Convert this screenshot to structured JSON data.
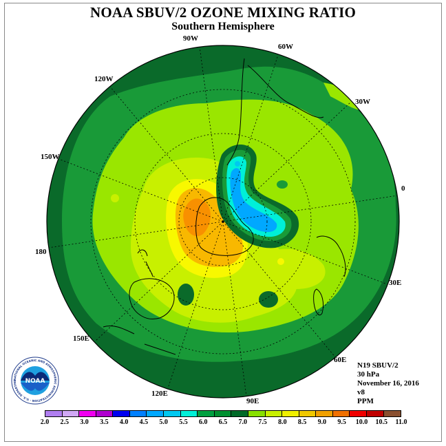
{
  "title": "NOAA SBUV/2 OZONE MIXING RATIO",
  "subtitle": "Southern Hemisphere",
  "longitude_labels": {
    "w90": "90W",
    "w60": "60W",
    "w30": "30W",
    "w120": "120W",
    "w150": "150W",
    "zero": "0",
    "lon180": "180",
    "e30": "30E",
    "e60": "60E",
    "e90": "90E",
    "e120": "120E",
    "e150": "150E"
  },
  "info": {
    "satellite": "N19 SBUV/2",
    "level": "30 hPa",
    "date": "November 16, 2016",
    "version": "v8",
    "units": "PPM"
  },
  "legend": {
    "colors": [
      "#b07ef0",
      "#d0a8f5",
      "#f000f0",
      "#b000d0",
      "#0000f0",
      "#0080ff",
      "#00a8ff",
      "#00c8f0",
      "#00f0d8",
      "#00a040",
      "#009030",
      "#006a28",
      "#88e000",
      "#c8f000",
      "#f0f000",
      "#f0c800",
      "#f0a000",
      "#f07000",
      "#f00000",
      "#c00000",
      "#8a5030"
    ],
    "ticks": [
      "2.0",
      "2.5",
      "3.0",
      "3.5",
      "4.0",
      "4.5",
      "5.0",
      "5.5",
      "6.0",
      "6.5",
      "7.0",
      "7.5",
      "8.0",
      "8.5",
      "9.0",
      "9.5",
      "10.0",
      "10.5",
      "11.0"
    ]
  },
  "logo": {
    "text": "NOAA",
    "ring_text": "NATIONAL OCEANIC AND ATMOSPHERIC ADMINISTRATION · U.S. DEPARTMENT OF COMMERCE"
  },
  "colors": {
    "dark_green": "#0a6a2a",
    "medium_green": "#199a38",
    "light_green": "#9ae600",
    "yellow_green": "#c8f000",
    "yellow": "#f8f800",
    "orange": "#f8b800",
    "deep_orange": "#f89000",
    "cyan": "#00f0d8",
    "blue": "#00a8ff"
  }
}
